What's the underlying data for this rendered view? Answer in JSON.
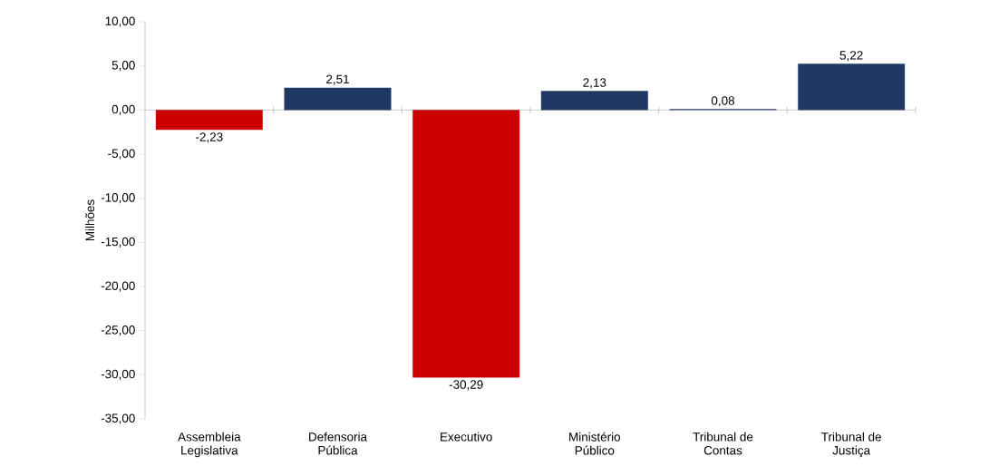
{
  "chart_data": {
    "type": "bar",
    "ylabel": "Milhões",
    "categories": [
      "Assembleia Legislativa",
      "Defensoria Pública",
      "Executivo",
      "Ministério Público",
      "Tribunal de Contas",
      "Tribunal de Justiça"
    ],
    "values": [
      -2.23,
      2.51,
      -30.29,
      2.13,
      0.08,
      5.22
    ],
    "value_labels": [
      "-2,23",
      "2,51",
      "-30,29",
      "2,13",
      "0,08",
      "5,22"
    ],
    "colors": [
      "#cc0000",
      "#1f3864",
      "#cc0000",
      "#1f3864",
      "#1f3864",
      "#1f3864"
    ],
    "ylim": [
      -35,
      10
    ],
    "yticks": [
      {
        "value": -35,
        "label": "-35,00"
      },
      {
        "value": -30,
        "label": "-30,00"
      },
      {
        "value": -25,
        "label": "-25,00"
      },
      {
        "value": -20,
        "label": "-20,00"
      },
      {
        "value": -15,
        "label": "-15,00"
      },
      {
        "value": -10,
        "label": "-10,00"
      },
      {
        "value": -5,
        "label": "-5,00"
      },
      {
        "value": 0,
        "label": "0,00"
      },
      {
        "value": 5,
        "label": "5,00"
      },
      {
        "value": 10,
        "label": "10,00"
      }
    ],
    "legend": false
  }
}
